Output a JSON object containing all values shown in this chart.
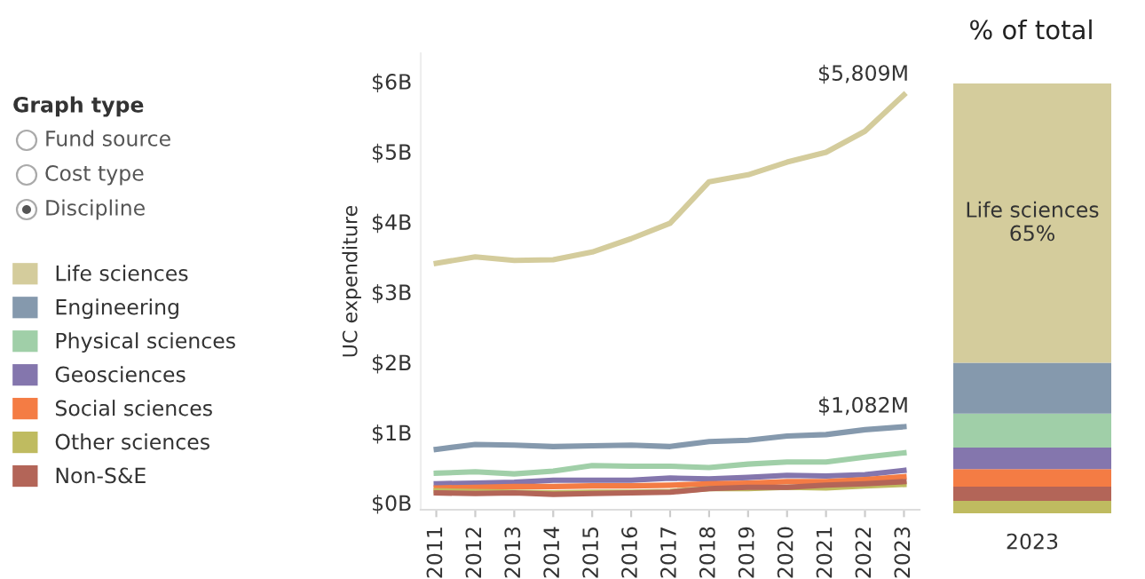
{
  "chart_data": [
    {
      "type": "other",
      "title": "Graph type",
      "annotations": [
        "Fund source",
        "Cost type",
        "Discipline"
      ]
    },
    {
      "type": "line",
      "ylabel": "UC expenditure",
      "legend": "left",
      "marker": "none",
      "grid": false,
      "categories": [
        "2011",
        "2012",
        "2013",
        "2014",
        "2015",
        "2016",
        "2017",
        "2018",
        "2019",
        "2020",
        "2021",
        "2022",
        "2023"
      ],
      "ylim": [
        -0.1,
        6.4
      ],
      "yticks": [
        {
          "value": 0,
          "label": "$0B"
        },
        {
          "value": 1,
          "label": "$1B"
        },
        {
          "value": 2,
          "label": "$2B"
        },
        {
          "value": 3,
          "label": "$3B"
        },
        {
          "value": 4,
          "label": "$4B"
        },
        {
          "value": 5,
          "label": "$5B"
        },
        {
          "value": 6,
          "label": "$6B"
        }
      ],
      "series": [
        {
          "name": "Life sciences",
          "color": "#d4cc9c",
          "values": [
            3.41,
            3.5,
            3.45,
            3.46,
            3.57,
            3.76,
            3.98,
            4.57,
            4.67,
            4.85,
            4.99,
            5.29,
            5.809
          ]
        },
        {
          "name": "Engineering",
          "color": "#8599ad",
          "values": [
            0.76,
            0.83,
            0.82,
            0.8,
            0.81,
            0.82,
            0.8,
            0.87,
            0.89,
            0.95,
            0.97,
            1.04,
            1.082
          ]
        },
        {
          "name": "Physical sciences",
          "color": "#a0cfa8",
          "values": [
            0.42,
            0.44,
            0.41,
            0.45,
            0.53,
            0.52,
            0.52,
            0.5,
            0.55,
            0.58,
            0.58,
            0.65,
            0.71
          ]
        },
        {
          "name": "Geosciences",
          "color": "#8476ad",
          "values": [
            0.27,
            0.28,
            0.29,
            0.32,
            0.32,
            0.32,
            0.35,
            0.34,
            0.36,
            0.39,
            0.38,
            0.4,
            0.46
          ]
        },
        {
          "name": "Social sciences",
          "color": "#f47c44",
          "values": [
            0.21,
            0.22,
            0.23,
            0.23,
            0.24,
            0.24,
            0.25,
            0.27,
            0.28,
            0.3,
            0.3,
            0.33,
            0.37
          ]
        },
        {
          "name": "Other sciences",
          "color": "#bfbb60",
          "values": [
            0.17,
            0.16,
            0.15,
            0.14,
            0.15,
            0.15,
            0.16,
            0.2,
            0.2,
            0.22,
            0.21,
            0.24,
            0.26
          ]
        },
        {
          "name": "Non-S&E",
          "color": "#b36558",
          "values": [
            0.14,
            0.13,
            0.14,
            0.12,
            0.13,
            0.14,
            0.15,
            0.2,
            0.22,
            0.22,
            0.25,
            0.27,
            0.3
          ]
        }
      ],
      "annotations": [
        {
          "text": "$5,809M",
          "x": "2023",
          "y": 5.809
        },
        {
          "text": "$1,082M",
          "x": "2023",
          "y": 1.082
        }
      ]
    },
    {
      "type": "bar",
      "stacked": true,
      "title": "% of total",
      "categories": [
        "2023"
      ],
      "ylim": [
        0,
        100
      ],
      "tick_labels": "x",
      "series": [
        {
          "color": "#bfbb60",
          "values": [
            2.9
          ]
        },
        {
          "color": "#b36558",
          "values": [
            3.3
          ]
        },
        {
          "color": "#f47c44",
          "values": [
            4.1
          ]
        },
        {
          "color": "#8476ad",
          "values": [
            5.0
          ]
        },
        {
          "color": "#a0cfa8",
          "values": [
            7.9
          ]
        },
        {
          "color": "#8599ad",
          "values": [
            11.8
          ]
        },
        {
          "color": "#d4cc9c",
          "values": [
            65
          ],
          "value_labels": [
            "Life sciences\n65%"
          ]
        }
      ]
    }
  ]
}
